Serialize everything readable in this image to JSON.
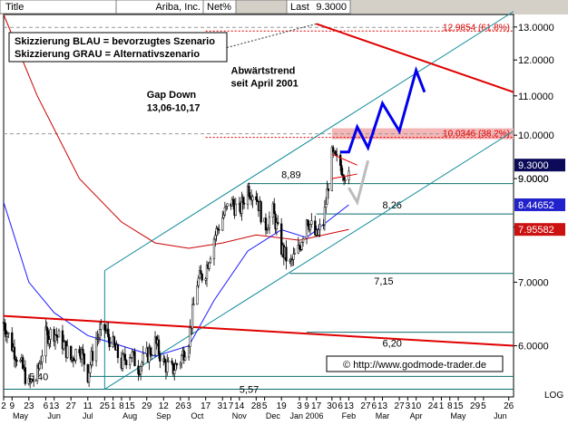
{
  "header": {
    "title_label": "Title",
    "company": "Ariba, Inc.",
    "metric": "Net%",
    "last_label": "Last",
    "last_value": "9.3000"
  },
  "colors": {
    "candle": "#000000",
    "channel": "#0e8a9a",
    "support": "#0e6e6e",
    "trend": "#e00000",
    "ma_blue": "#1a1aff",
    "ma_red": "#cc0000",
    "fib_box": "#f4b6b6",
    "scenario_blue": "#0000ee",
    "scenario_gray": "#bbbbbb",
    "price_box": "#0b0b5a",
    "blue_box": "#2222cc",
    "red_box": "#cc1111"
  },
  "chart_data": {
    "type": "candlestick",
    "scale": "log",
    "ylim": [
      5.3,
      13.4
    ],
    "y_ticks": [
      6.0,
      7.0,
      8.0,
      9.0,
      10.0,
      11.0,
      12.0,
      13.0
    ],
    "y_tick_labels": [
      "6.0000",
      "7.0000",
      "8.0000",
      "9.0000",
      "10.0000",
      "11.0000",
      "12.0000",
      "13.0000"
    ],
    "log_label": "LOG",
    "price_tags": [
      {
        "label": "9.3000",
        "value": 9.3,
        "style": "dark"
      },
      {
        "label": "9.0000",
        "value": 9.0,
        "style": "plain"
      },
      {
        "label": "8.44652",
        "value": 8.4465,
        "style": "blue"
      },
      {
        "label": "7.95582",
        "value": 7.9558,
        "style": "red"
      }
    ],
    "x_dates": [
      "2005-05-02",
      "2006-06-30"
    ],
    "x_ticks": [
      {
        "date": "2005-05-02",
        "label": "2"
      },
      {
        "date": "2005-05-09",
        "label": "9"
      },
      {
        "date": "2005-05-23",
        "label": "23"
      },
      {
        "date": "2005-06-06",
        "label": "6"
      },
      {
        "date": "2005-06-13",
        "label": "13"
      },
      {
        "date": "2005-06-27",
        "label": "27"
      },
      {
        "date": "2005-07-11",
        "label": "11"
      },
      {
        "date": "2005-07-25",
        "label": "25"
      },
      {
        "date": "2005-08-01",
        "label": "1"
      },
      {
        "date": "2005-08-08",
        "label": "8"
      },
      {
        "date": "2005-08-15",
        "label": "15"
      },
      {
        "date": "2005-08-29",
        "label": "29"
      },
      {
        "date": "2005-09-12",
        "label": "12"
      },
      {
        "date": "2005-09-26",
        "label": "26"
      },
      {
        "date": "2005-10-03",
        "label": "3"
      },
      {
        "date": "2005-10-17",
        "label": "17"
      },
      {
        "date": "2005-10-31",
        "label": "31"
      },
      {
        "date": "2005-11-07",
        "label": "7"
      },
      {
        "date": "2005-11-14",
        "label": "14"
      },
      {
        "date": "2005-11-28",
        "label": "28"
      },
      {
        "date": "2005-12-05",
        "label": "5"
      },
      {
        "date": "2005-12-19",
        "label": "19"
      },
      {
        "date": "2006-01-03",
        "label": "3"
      },
      {
        "date": "2006-01-09",
        "label": "9"
      },
      {
        "date": "2006-01-17",
        "label": "17"
      },
      {
        "date": "2006-01-30",
        "label": "30"
      },
      {
        "date": "2006-02-06",
        "label": "6"
      },
      {
        "date": "2006-02-13",
        "label": "13"
      },
      {
        "date": "2006-02-27",
        "label": "27"
      },
      {
        "date": "2006-03-06",
        "label": "6"
      },
      {
        "date": "2006-03-13",
        "label": "13"
      },
      {
        "date": "2006-03-27",
        "label": "27"
      },
      {
        "date": "2006-04-03",
        "label": "3"
      },
      {
        "date": "2006-04-10",
        "label": "10"
      },
      {
        "date": "2006-04-24",
        "label": "24"
      },
      {
        "date": "2006-05-01",
        "label": "1"
      },
      {
        "date": "2006-05-08",
        "label": "8"
      },
      {
        "date": "2006-05-15",
        "label": "15"
      },
      {
        "date": "2006-05-29",
        "label": "29"
      },
      {
        "date": "2006-06-05",
        "label": "5"
      },
      {
        "date": "2006-06-26",
        "label": "26"
      }
    ],
    "month_labels": [
      {
        "date": "2005-05-16",
        "label": "May"
      },
      {
        "date": "2005-06-13",
        "label": "Jun"
      },
      {
        "date": "2005-07-11",
        "label": "Jul"
      },
      {
        "date": "2005-08-15",
        "label": "Aug"
      },
      {
        "date": "2005-09-12",
        "label": "Sep"
      },
      {
        "date": "2005-10-10",
        "label": "Oct"
      },
      {
        "date": "2005-11-14",
        "label": "Nov"
      },
      {
        "date": "2005-12-12",
        "label": "Dec"
      },
      {
        "date": "2006-01-09",
        "label": "Jan 2006"
      },
      {
        "date": "2006-02-13",
        "label": "Feb"
      },
      {
        "date": "2006-03-13",
        "label": "Mar"
      },
      {
        "date": "2006-04-10",
        "label": "Apr"
      },
      {
        "date": "2006-05-15",
        "label": "May"
      },
      {
        "date": "2006-06-19",
        "label": "Jun"
      }
    ],
    "price_path": [
      [
        "2005-05-02",
        6.35
      ],
      [
        "2005-05-09",
        6.0
      ],
      [
        "2005-05-16",
        5.75
      ],
      [
        "2005-05-23",
        5.45
      ],
      [
        "2005-05-30",
        5.6
      ],
      [
        "2005-06-06",
        6.15
      ],
      [
        "2005-06-13",
        6.2
      ],
      [
        "2005-06-20",
        6.05
      ],
      [
        "2005-06-27",
        5.8
      ],
      [
        "2005-07-04",
        6.0
      ],
      [
        "2005-07-11",
        5.6
      ],
      [
        "2005-07-18",
        6.1
      ],
      [
        "2005-07-25",
        6.25
      ],
      [
        "2005-08-01",
        6.0
      ],
      [
        "2005-08-08",
        5.75
      ],
      [
        "2005-08-15",
        5.9
      ],
      [
        "2005-08-22",
        5.7
      ],
      [
        "2005-08-29",
        5.85
      ],
      [
        "2005-09-05",
        6.05
      ],
      [
        "2005-09-12",
        5.75
      ],
      [
        "2005-09-19",
        5.65
      ],
      [
        "2005-09-26",
        5.8
      ],
      [
        "2005-10-03",
        6.1
      ],
      [
        "2005-10-10",
        7.0
      ],
      [
        "2005-10-17",
        7.2
      ],
      [
        "2005-10-24",
        7.8
      ],
      [
        "2005-10-31",
        8.2
      ],
      [
        "2005-11-07",
        8.5
      ],
      [
        "2005-11-14",
        8.3
      ],
      [
        "2005-11-21",
        8.8
      ],
      [
        "2005-11-28",
        8.65
      ],
      [
        "2005-12-05",
        8.0
      ],
      [
        "2005-12-12",
        8.3
      ],
      [
        "2005-12-19",
        7.6
      ],
      [
        "2005-12-26",
        7.3
      ],
      [
        "2006-01-03",
        7.6
      ],
      [
        "2006-01-09",
        8.2
      ],
      [
        "2006-01-17",
        7.8
      ],
      [
        "2006-01-23",
        8.1
      ],
      [
        "2006-01-30",
        9.5
      ],
      [
        "2006-02-06",
        9.3
      ],
      [
        "2006-02-13",
        9.0
      ]
    ],
    "channel": {
      "start_date": "2005-07-25",
      "end_date": "2006-06-30",
      "upper": [
        7.2,
        13.5
      ],
      "lower": [
        5.4,
        10.1
      ]
    },
    "trend_lines": [
      {
        "start": [
          "2005-05-02",
          6.45
        ],
        "end": [
          "2006-06-30",
          6.0
        ]
      },
      {
        "start": [
          "2006-01-17",
          13.1
        ],
        "end": [
          "2006-06-30",
          11.1
        ]
      }
    ],
    "moving_averages": [
      {
        "color_key": "ma_red",
        "points": [
          [
            "2005-05-02",
            13.4
          ],
          [
            "2005-05-30",
            11.0
          ],
          [
            "2005-07-04",
            9.0
          ],
          [
            "2005-08-08",
            8.1
          ],
          [
            "2005-09-05",
            7.7
          ],
          [
            "2005-10-03",
            7.6
          ],
          [
            "2005-10-31",
            7.7
          ],
          [
            "2005-11-28",
            7.85
          ],
          [
            "2006-01-03",
            7.75
          ],
          [
            "2006-02-13",
            7.9558
          ]
        ]
      },
      {
        "color_key": "ma_blue",
        "points": [
          [
            "2005-05-02",
            8.5
          ],
          [
            "2005-05-23",
            7.0
          ],
          [
            "2005-06-13",
            6.5
          ],
          [
            "2005-07-11",
            6.15
          ],
          [
            "2005-08-08",
            6.0
          ],
          [
            "2005-09-05",
            5.85
          ],
          [
            "2005-10-03",
            6.0
          ],
          [
            "2005-10-24",
            6.7
          ],
          [
            "2005-11-21",
            7.55
          ],
          [
            "2005-12-19",
            7.95
          ],
          [
            "2006-01-09",
            7.8
          ],
          [
            "2006-02-13",
            8.4465
          ]
        ]
      }
    ],
    "horizontal_levels": [
      {
        "value": 8.89,
        "label": "8,89"
      },
      {
        "value": 8.26,
        "label": "8,26"
      },
      {
        "value": 7.15,
        "label": "7,15"
      },
      {
        "value": 6.2,
        "label": "6,20"
      },
      {
        "value": 5.57,
        "label": "5,57"
      },
      {
        "value": 5.4,
        "label": "5,40"
      }
    ],
    "fib_levels": [
      {
        "value": 12.9854,
        "label": "12.9854 (61.8%)"
      },
      {
        "value": 10.0346,
        "label": "10.0346 (38.2%)"
      }
    ],
    "scenario_blue": [
      [
        "2006-02-06",
        9.6
      ],
      [
        "2006-02-13",
        9.6
      ],
      [
        "2006-02-20",
        10.2
      ],
      [
        "2006-03-01",
        9.7
      ],
      [
        "2006-03-13",
        10.8
      ],
      [
        "2006-03-27",
        10.1
      ],
      [
        "2006-04-10",
        11.7
      ],
      [
        "2006-04-17",
        11.1
      ]
    ],
    "scenario_gray": [
      [
        "2006-02-13",
        8.8
      ],
      [
        "2006-02-20",
        8.5
      ],
      [
        "2006-03-01",
        9.4
      ]
    ],
    "annotations": [
      {
        "text": "Abwärtstrend",
        "date": "2005-11-07",
        "value": 11.6
      },
      {
        "text": "seit April 2001",
        "date": "2005-11-07",
        "value": 11.25
      },
      {
        "text": "Gap Down",
        "date": "2005-08-29",
        "value": 10.95
      },
      {
        "text": "13,06-10,17",
        "date": "2005-08-29",
        "value": 10.6
      }
    ],
    "legend": [
      "Skizzierung BLAU = bevorzugtes Szenario",
      "Skizzierung GRAU = Alternativszenario"
    ],
    "credit": "© http://www.godmode-trader.de"
  }
}
